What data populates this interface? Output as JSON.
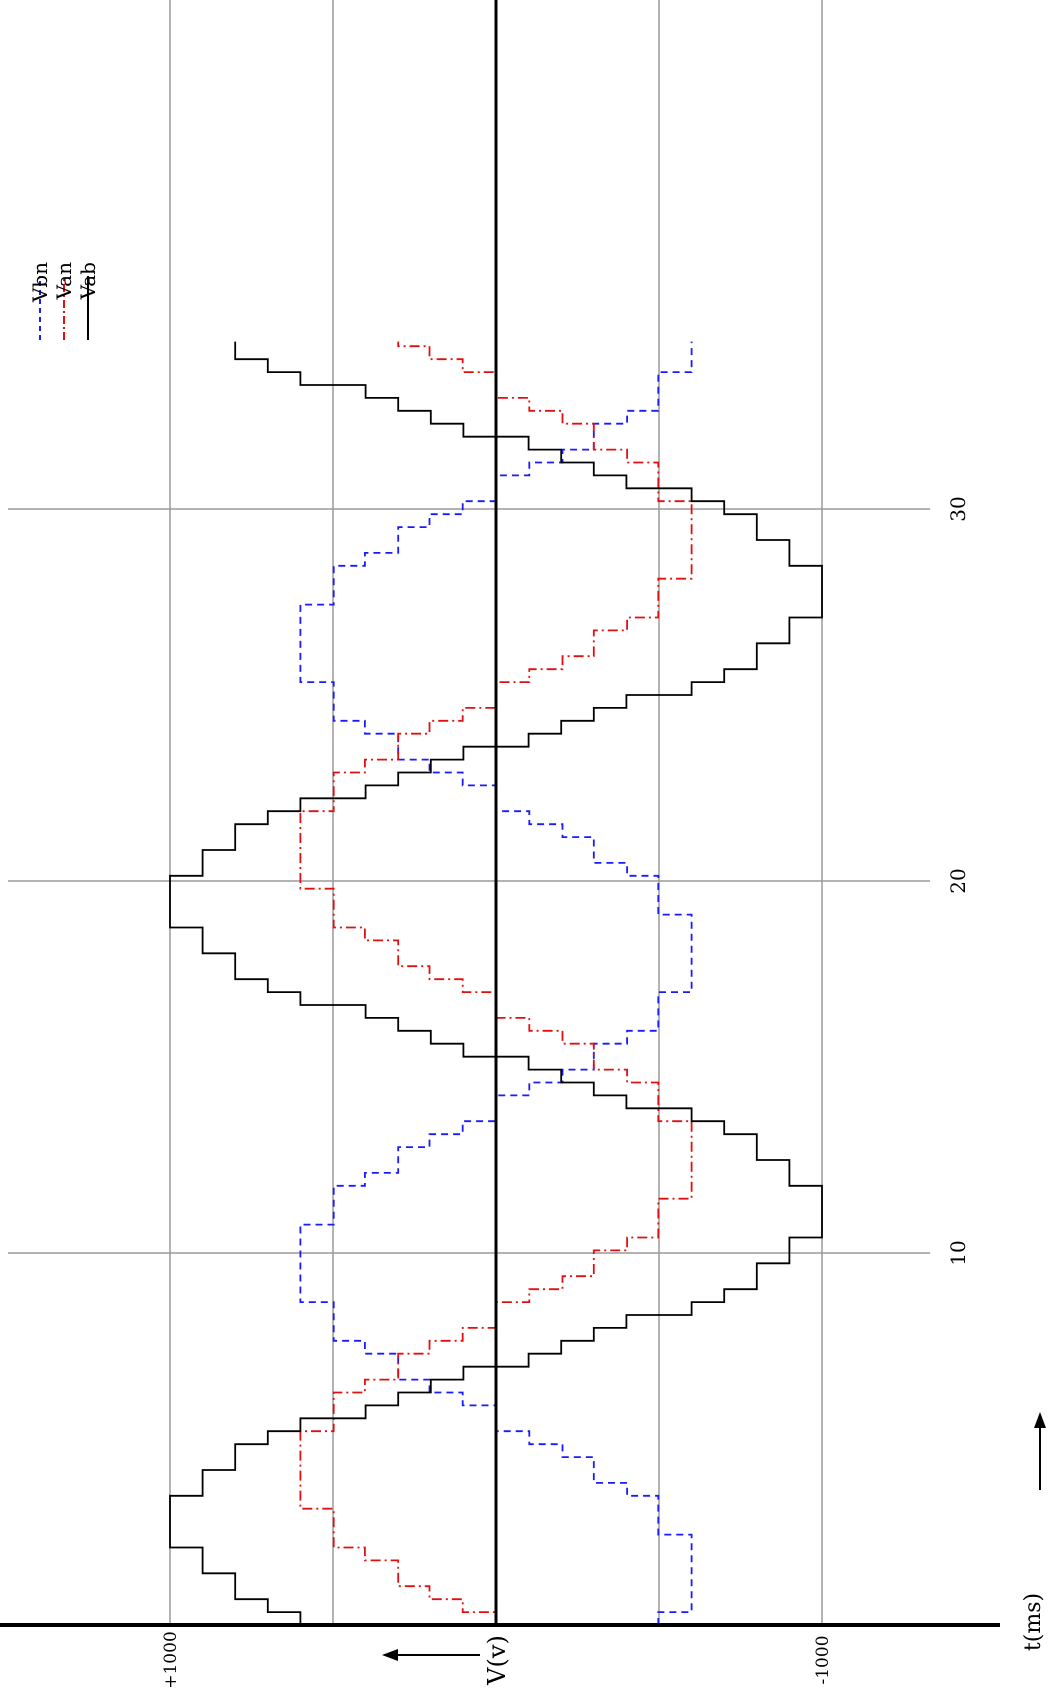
{
  "chart_data": {
    "type": "line",
    "orientation": "rotated-90",
    "xlabel": "t(ms)",
    "ylabel": "V(v)",
    "xlim": [
      0,
      34.5
    ],
    "ylim": [
      -1000,
      1000
    ],
    "x_ticks": [
      {
        "value": 10,
        "label": "10"
      },
      {
        "value": 20,
        "label": "20"
      },
      {
        "value": 30,
        "label": "30"
      }
    ],
    "y_ticks": [
      {
        "value": 1000,
        "label": "+1000"
      },
      {
        "value": -1000,
        "label": "-1000"
      }
    ],
    "grid": true,
    "legend_position": "top-left",
    "period_ms": 16.6667,
    "series": [
      {
        "name": "Vbn",
        "key": "vbn",
        "color": "#1a1aff",
        "style": "dashed",
        "phase_deg": -120,
        "levels": [
          0,
          0.17,
          0.34,
          0.5,
          0.67,
          0.83,
          1
        ]
      },
      {
        "name": "Van",
        "key": "van",
        "color": "#e01010",
        "style": "dash-dot",
        "phase_deg": 0,
        "levels": [
          0,
          0.17,
          0.34,
          0.5,
          0.67,
          0.83,
          1
        ]
      },
      {
        "name": "Vab",
        "key": "vab",
        "color": "#000000",
        "style": "solid",
        "phase_deg": 30,
        "levels": [
          0,
          0.1,
          0.2,
          0.3,
          0.4,
          0.5,
          0.6,
          0.7,
          0.8,
          0.9,
          1
        ]
      }
    ],
    "peak_values": {
      "vbn": 600,
      "van": 600,
      "vab": 1000
    },
    "step_count_per_period": 48
  }
}
